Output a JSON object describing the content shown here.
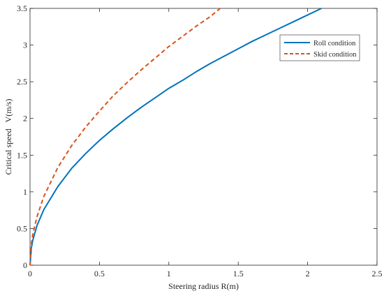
{
  "chart_data": {
    "type": "line",
    "title": "",
    "xlabel": "Steering radius R(m)",
    "ylabel": "Critical speed   V(m/s)",
    "xlim": [
      0,
      2.5
    ],
    "ylim": [
      0,
      3.5
    ],
    "xticks": [
      0,
      0.5,
      1,
      1.5,
      2,
      2.5
    ],
    "xtick_labels": [
      "0",
      "0.5",
      "1",
      "1.5",
      "2",
      "2.5"
    ],
    "yticks": [
      0,
      0.5,
      1,
      1.5,
      2,
      2.5,
      3,
      3.5
    ],
    "ytick_labels": [
      "0",
      "0.5",
      "1",
      "1.5",
      "2",
      "2.5",
      "3",
      "3.5"
    ],
    "grid": false,
    "legend_position": "top-right",
    "series": [
      {
        "name": "Roll condition",
        "color": "#0072BD",
        "style": "solid",
        "x": [
          0,
          0.01,
          0.02,
          0.05,
          0.1,
          0.2,
          0.3,
          0.4,
          0.5,
          0.6,
          0.7,
          0.8,
          0.9,
          1.0,
          1.1,
          1.2,
          1.3,
          1.4,
          1.5,
          1.6,
          1.7,
          1.8,
          1.9,
          2.0,
          2.1
        ],
        "y": [
          0,
          0.24,
          0.34,
          0.54,
          0.76,
          1.07,
          1.32,
          1.52,
          1.7,
          1.86,
          2.01,
          2.15,
          2.28,
          2.41,
          2.52,
          2.64,
          2.75,
          2.85,
          2.95,
          3.05,
          3.14,
          3.23,
          3.32,
          3.41,
          3.5
        ]
      },
      {
        "name": "Skid condition",
        "color": "#D95319",
        "style": "dashed",
        "x": [
          0,
          0.01,
          0.02,
          0.05,
          0.1,
          0.2,
          0.3,
          0.4,
          0.5,
          0.6,
          0.7,
          0.8,
          0.9,
          1.0,
          1.1,
          1.2,
          1.3,
          1.37
        ],
        "y": [
          0,
          0.3,
          0.42,
          0.66,
          0.94,
          1.33,
          1.63,
          1.88,
          2.1,
          2.31,
          2.49,
          2.66,
          2.82,
          2.98,
          3.12,
          3.26,
          3.39,
          3.5
        ]
      }
    ]
  }
}
